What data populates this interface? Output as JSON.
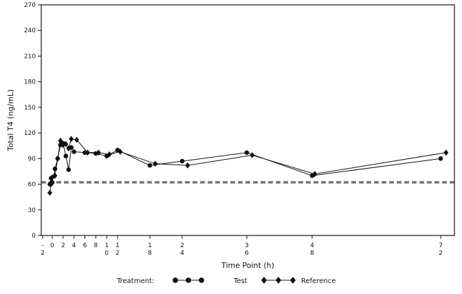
{
  "chart_data": {
    "type": "line",
    "xlabel": "Time Point (h)",
    "ylabel": "Total T4 (ng/mL)",
    "ylim": [
      0,
      270
    ],
    "yticks": [
      0,
      30,
      60,
      90,
      120,
      150,
      180,
      210,
      240,
      270
    ],
    "xlim": [
      -2,
      72
    ],
    "x_tick_values": [
      -2,
      0,
      2,
      4,
      6,
      8,
      10,
      12,
      18,
      24,
      36,
      48,
      72
    ],
    "x_tick_labels": [
      [
        "–",
        "2"
      ],
      [
        "0"
      ],
      [
        "2"
      ],
      [
        "4"
      ],
      [
        "6"
      ],
      [
        "8"
      ],
      [
        "1",
        "0"
      ],
      [
        "1",
        "2"
      ],
      [
        "1",
        "8"
      ],
      [
        "2",
        "4"
      ],
      [
        "3",
        "6"
      ],
      [
        "4",
        "8"
      ],
      [
        "7",
        "2"
      ]
    ],
    "grid": false,
    "legend": {
      "placement": "bottom",
      "title": "Treatment:"
    },
    "series": [
      {
        "name": "Test",
        "marker": "circle",
        "x": [
          -0.5,
          -0.25,
          0,
          0.5,
          1,
          1.5,
          2,
          2.5,
          3,
          3.5,
          4,
          6,
          8,
          10,
          12,
          18,
          24,
          36,
          48,
          72
        ],
        "y": [
          60,
          67,
          62,
          78,
          90,
          106,
          108,
          93,
          77,
          103,
          98,
          97,
          96,
          93,
          100,
          82,
          87,
          97,
          70,
          90
        ]
      },
      {
        "name": "Reference",
        "marker": "diamond",
        "x": [
          -0.5,
          -0.25,
          0,
          0.5,
          1,
          1.5,
          2,
          2.5,
          3,
          3.5,
          4.5,
          6.5,
          8.5,
          10.5,
          12.5,
          19,
          25,
          37,
          48.5,
          73
        ],
        "y": [
          50,
          60,
          68,
          70,
          90,
          111,
          106,
          107,
          102,
          113,
          112,
          97,
          97,
          95,
          98,
          84,
          82,
          94,
          72,
          97
        ]
      }
    ],
    "reference_lines": [
      {
        "style": "dashed",
        "y": 61.5
      },
      {
        "style": "dashed",
        "y": 63
      }
    ]
  }
}
